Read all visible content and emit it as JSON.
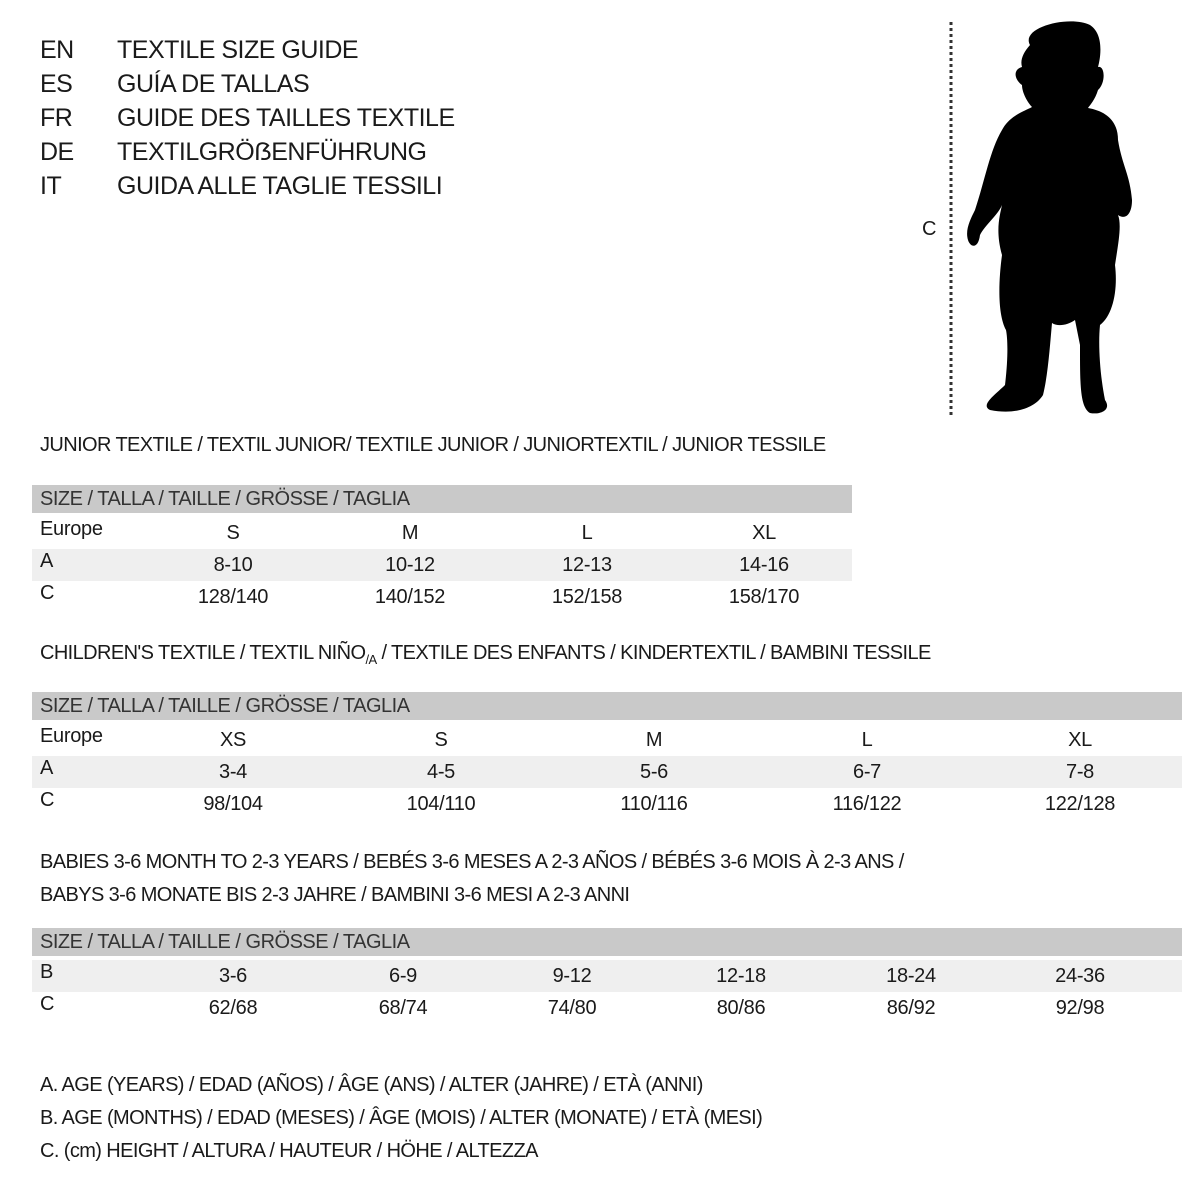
{
  "languages": [
    {
      "code": "EN",
      "title": "TEXTILE SIZE GUIDE"
    },
    {
      "code": "ES",
      "title": "GUÍA DE TALLAS"
    },
    {
      "code": "FR",
      "title": "GUIDE DES TAILLES TEXTILE"
    },
    {
      "code": "DE",
      "title": "TEXTILGRÖẞENFÜHRUNG"
    },
    {
      "code": "IT",
      "title": "GUIDA ALLE TAGLIE TESSILI"
    }
  ],
  "figure": {
    "label": "C",
    "icon": "child-silhouette-icon"
  },
  "junior": {
    "title": "JUNIOR TEXTILE / TEXTIL JUNIOR/ TEXTILE JUNIOR / JUNIORTEXTIL / JUNIOR TESSILE",
    "header": "SIZE / TALLA / TAILLE / GRÖSSE / TAGLIA",
    "rows": [
      {
        "label": "Europe",
        "cells": [
          "S",
          "M",
          "L",
          "XL"
        ]
      },
      {
        "label": "A",
        "cells": [
          "8-10",
          "10-12",
          "12-13",
          "14-16"
        ]
      },
      {
        "label": "C",
        "cells": [
          "128/140",
          "140/152",
          "152/158",
          "158/170"
        ]
      }
    ]
  },
  "children": {
    "title_pre": "CHILDREN'S TEXTILE / TEXTIL NIÑO",
    "title_sub": "/A",
    "title_post": " / TEXTILE DES ENFANTS / KINDERTEXTIL / BAMBINI TESSILE",
    "header": "SIZE / TALLA / TAILLE / GRÖSSE / TAGLIA",
    "rows": [
      {
        "label": "Europe",
        "cells": [
          "XS",
          "S",
          "M",
          "L",
          "XL"
        ]
      },
      {
        "label": "A",
        "cells": [
          "3-4",
          "4-5",
          "5-6",
          "6-7",
          "7-8"
        ]
      },
      {
        "label": "C",
        "cells": [
          "98/104",
          "104/110",
          "110/116",
          "116/122",
          "122/128"
        ]
      }
    ]
  },
  "babies": {
    "title_line1": "BABIES 3-6 MONTH TO 2-3 YEARS / BEBÉS 3-6 MESES A 2-3 AÑOS / BÉBÉS 3-6 MOIS À 2-3 ANS /",
    "title_line2": "BABYS 3-6 MONATE BIS 2-3 JAHRE / BAMBINI 3-6 MESI A 2-3 ANNI",
    "header": "SIZE / TALLA / TAILLE / GRÖSSE / TAGLIA",
    "rows": [
      {
        "label": "B",
        "cells": [
          "3-6",
          "6-9",
          "9-12",
          "12-18",
          "18-24",
          "24-36"
        ]
      },
      {
        "label": "C",
        "cells": [
          "62/68",
          "68/74",
          "74/80",
          "80/86",
          "86/92",
          "92/98"
        ]
      }
    ]
  },
  "legend": [
    "A. AGE (YEARS) / EDAD (AÑOS) / ÂGE (ANS) / ALTER (JAHRE) / ETÀ (ANNI)",
    "B. AGE (MONTHS) / EDAD (MESES) / ÂGE (MOIS) / ALTER (MONATE) / ETÀ (MESI)",
    "C. (cm) HEIGHT / ALTURA / HAUTEUR / HÖHE / ALTEZZA"
  ],
  "colors": {
    "header_bg": "#c9c9c9",
    "shade_bg": "#efefef",
    "text": "#1a1a1a"
  }
}
